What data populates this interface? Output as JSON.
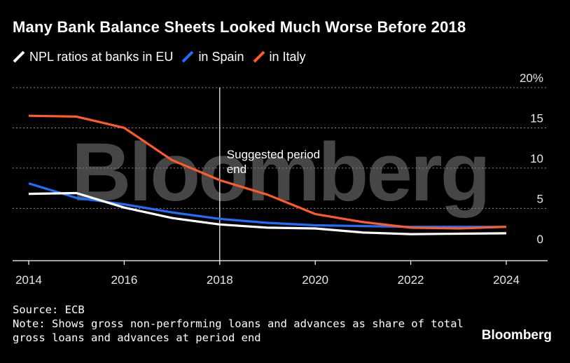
{
  "title": "Many Bank Balance Sheets Looked Much Worse Before 2018",
  "legend": [
    {
      "label": "NPL ratios at banks in EU",
      "color": "#ffffff"
    },
    {
      "label": "in Spain",
      "color": "#1f6fff"
    },
    {
      "label": "in Italy",
      "color": "#ff5a2a"
    }
  ],
  "source": "Source: ECB",
  "note_line1": "Note: Shows gross non-performing loans and advances as share of total",
  "note_line2": "gross loans and advances at period end",
  "brand": "Bloomberg",
  "watermark": "Bloomberg",
  "chart_data": {
    "type": "line",
    "title": "Many Bank Balance Sheets Looked Much Worse Before 2018",
    "x": [
      2014,
      2015,
      2016,
      2017,
      2018,
      2019,
      2020,
      2021,
      2022,
      2023,
      2024
    ],
    "xticks": [
      2014,
      2016,
      2018,
      2020,
      2022,
      2024
    ],
    "yticks": [
      0,
      5,
      10,
      15,
      20
    ],
    "ytick_labels": [
      "0",
      "5",
      "10",
      "15",
      "20%"
    ],
    "xlim": [
      2014,
      2024
    ],
    "ylim": [
      -1.5,
      20
    ],
    "grid": true,
    "legend_position": "top-left",
    "series": [
      {
        "name": "NPL ratios at banks in EU",
        "color": "#ffffff",
        "values": [
          6.8,
          6.9,
          5.1,
          3.8,
          3.0,
          2.6,
          2.5,
          2.0,
          1.8,
          1.85,
          1.9
        ]
      },
      {
        "name": "in Spain",
        "color": "#1f6fff",
        "values": [
          8.1,
          6.3,
          5.5,
          4.5,
          3.7,
          3.2,
          2.9,
          2.8,
          2.7,
          2.7,
          2.7
        ]
      },
      {
        "name": "in Italy",
        "color": "#ff5a2a",
        "values": [
          16.5,
          16.4,
          15.0,
          11.0,
          8.5,
          6.7,
          4.3,
          3.3,
          2.6,
          2.5,
          2.7
        ]
      }
    ],
    "annotation": {
      "x": 2018,
      "lines": [
        "Suggested period",
        "end"
      ]
    }
  }
}
